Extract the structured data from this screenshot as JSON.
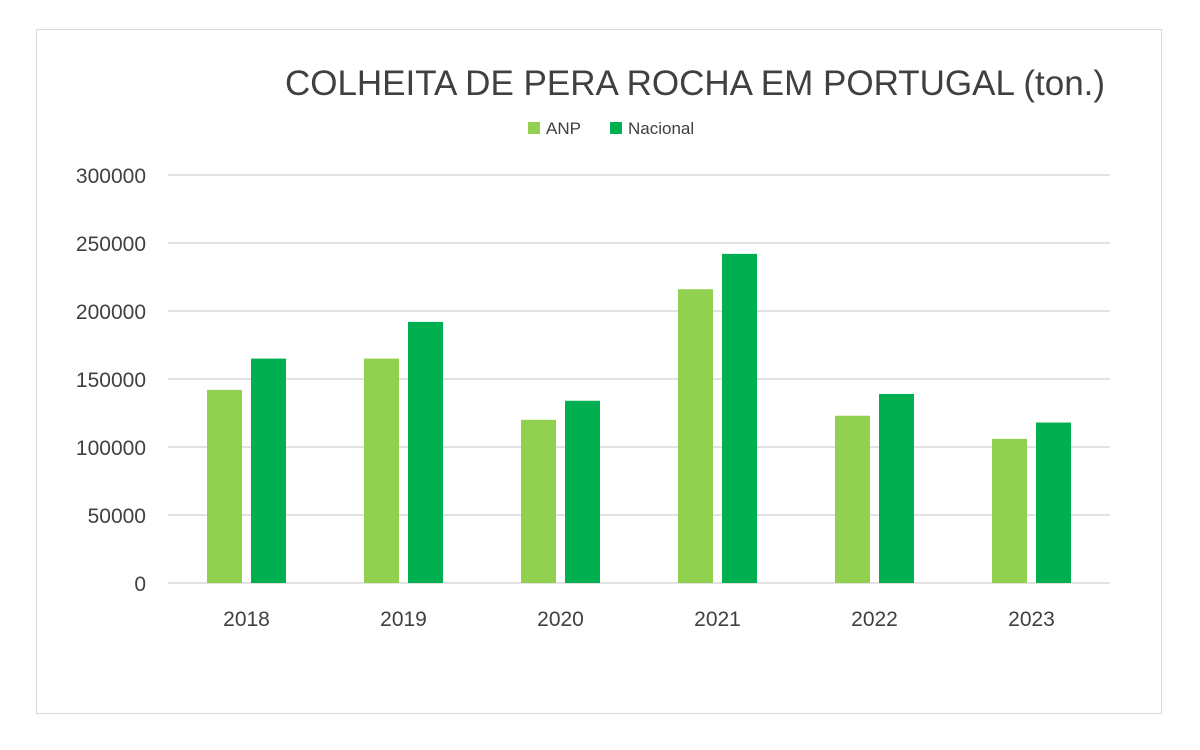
{
  "chart_data": {
    "type": "bar",
    "title": "COLHEITA DE PERA ROCHA EM PORTUGAL (ton.)",
    "categories": [
      "2018",
      "2019",
      "2020",
      "2021",
      "2022",
      "2023"
    ],
    "series": [
      {
        "name": "ANP",
        "color": "#92d050",
        "values": [
          142000,
          165000,
          120000,
          216000,
          123000,
          106000
        ]
      },
      {
        "name": "Nacional",
        "color": "#00b050",
        "values": [
          165000,
          192000,
          134000,
          242000,
          139000,
          118000
        ]
      }
    ],
    "ylim": [
      0,
      300000
    ],
    "yticks": [
      "0",
      "50000",
      "100000",
      "150000",
      "200000",
      "250000",
      "300000"
    ],
    "grid": true,
    "legend_position": "top"
  }
}
